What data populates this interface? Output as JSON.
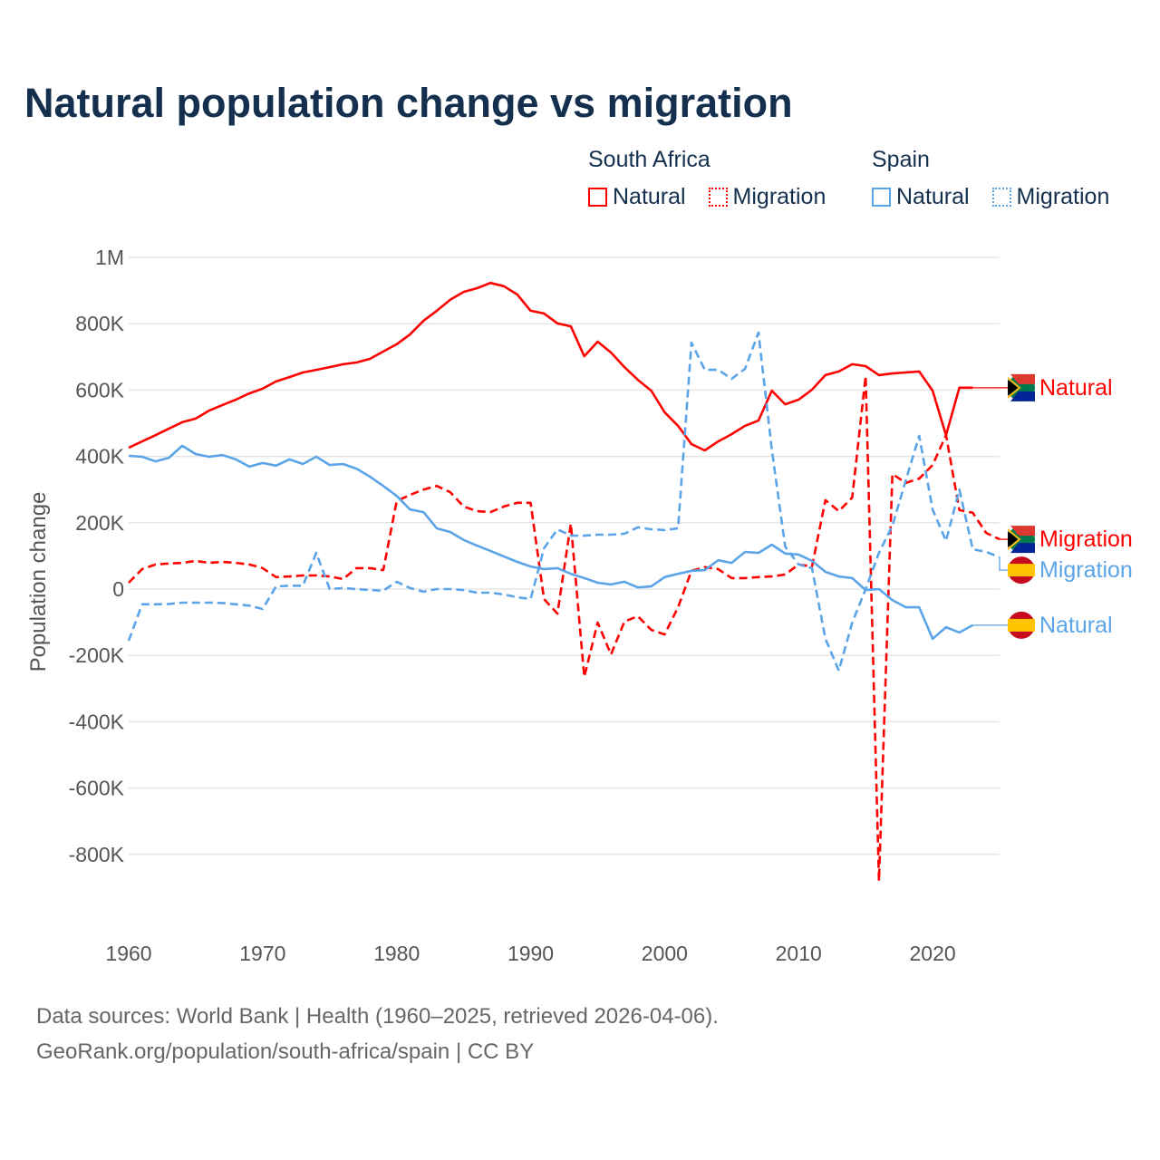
{
  "title": "Natural population change vs migration",
  "legend": {
    "groups": [
      {
        "name": "South Africa",
        "items": [
          {
            "label": "Natural",
            "style": "solid",
            "color": "#ff0000"
          },
          {
            "label": "Migration",
            "style": "dotted",
            "color": "#ff0000"
          }
        ]
      },
      {
        "name": "Spain",
        "items": [
          {
            "label": "Natural",
            "style": "solid",
            "color": "#5ba4e8"
          },
          {
            "label": "Migration",
            "style": "dotted",
            "color": "#5ba4e8"
          }
        ]
      }
    ]
  },
  "footer": {
    "line1": "Data sources: World Bank | Health (1960–2025, retrieved 2026-04-06).",
    "line2": "GeoRank.org/population/south-africa/spain | CC BY"
  },
  "chart_data": {
    "type": "line",
    "title": "Natural population change vs migration",
    "xlabel": "",
    "ylabel": "Population change",
    "xlim": [
      1960,
      2025
    ],
    "ylim": [
      -1000000,
      1000000
    ],
    "grid": true,
    "legend_position": "top-right",
    "x_ticks": [
      1960,
      1970,
      1980,
      1990,
      2000,
      2010,
      2020
    ],
    "y_ticks": [
      {
        "value": 1000000,
        "label": "1M"
      },
      {
        "value": 800000,
        "label": "800K"
      },
      {
        "value": 600000,
        "label": "600K"
      },
      {
        "value": 400000,
        "label": "400K"
      },
      {
        "value": 200000,
        "label": "200K"
      },
      {
        "value": 0,
        "label": "0"
      },
      {
        "value": -200000,
        "label": "-200K"
      },
      {
        "value": -400000,
        "label": "-400K"
      },
      {
        "value": -600000,
        "label": "-600K"
      },
      {
        "value": -800000,
        "label": "-800K"
      }
    ],
    "series": [
      {
        "name": "South Africa Natural",
        "end_label": "Natural",
        "country": "south-africa",
        "color": "#ff0000",
        "dash": "solid",
        "start_year": 1960,
        "values": [
          426000,
          445000,
          464000,
          484000,
          503000,
          514000,
          538000,
          555000,
          571000,
          590000,
          604000,
          626000,
          639000,
          653000,
          661000,
          669000,
          678000,
          683000,
          694000,
          716000,
          738000,
          768000,
          809000,
          839000,
          872000,
          896000,
          907000,
          923000,
          913000,
          888000,
          839000,
          831000,
          801000,
          792000,
          702000,
          746000,
          713000,
          669000,
          631000,
          598000,
          533000,
          492000,
          437000,
          418000,
          445000,
          467000,
          492000,
          508000,
          598000,
          557000,
          571000,
          601000,
          645000,
          656000,
          678000,
          672000,
          645000,
          650000,
          653000,
          656000,
          598000,
          464000,
          607000,
          607000
        ]
      },
      {
        "name": "South Africa Migration",
        "end_label": "Migration",
        "country": "south-africa",
        "color": "#ff0000",
        "dash": "dashed",
        "start_year": 1960,
        "values": [
          19000,
          60000,
          74000,
          77000,
          79000,
          85000,
          79000,
          82000,
          79000,
          74000,
          63000,
          36000,
          38000,
          41000,
          41000,
          38000,
          30000,
          63000,
          63000,
          57000,
          265000,
          284000,
          300000,
          311000,
          292000,
          249000,
          235000,
          232000,
          249000,
          260000,
          260000,
          -30000,
          -74000,
          197000,
          -265000,
          -101000,
          -197000,
          -98000,
          -82000,
          -123000,
          -137000,
          -55000,
          55000,
          66000,
          60000,
          33000,
          33000,
          36000,
          38000,
          44000,
          74000,
          68000,
          268000,
          235000,
          276000,
          642000,
          -880000,
          347000,
          320000,
          333000,
          374000,
          464000,
          238000,
          230000,
          169000,
          150000
        ]
      },
      {
        "name": "Spain Natural",
        "end_label": "Natural",
        "country": "spain",
        "color": "#5ba4e8",
        "dash": "solid",
        "start_year": 1960,
        "values": [
          402000,
          399000,
          385000,
          396000,
          432000,
          407000,
          399000,
          404000,
          391000,
          369000,
          380000,
          372000,
          391000,
          377000,
          399000,
          374000,
          377000,
          363000,
          339000,
          311000,
          281000,
          240000,
          232000,
          183000,
          172000,
          148000,
          131000,
          115000,
          98000,
          82000,
          68000,
          60000,
          63000,
          46000,
          33000,
          19000,
          14000,
          22000,
          5000,
          8000,
          36000,
          46000,
          55000,
          57000,
          87000,
          79000,
          112000,
          109000,
          134000,
          107000,
          104000,
          85000,
          52000,
          38000,
          33000,
          -3000,
          0,
          -33000,
          -55000,
          -55000,
          -150000,
          -115000,
          -131000,
          -109000
        ]
      },
      {
        "name": "Spain Migration",
        "end_label": "Migration",
        "country": "spain",
        "color": "#5ba4e8",
        "dash": "dashed",
        "start_year": 1960,
        "values": [
          -156000,
          -46000,
          -46000,
          -45000,
          -41000,
          -41000,
          -41000,
          -42000,
          -46000,
          -50000,
          -60000,
          8000,
          10000,
          10000,
          109000,
          0,
          3000,
          0,
          -3000,
          -5000,
          22000,
          3000,
          -8000,
          0,
          0,
          -3000,
          -11000,
          -11000,
          -16000,
          -25000,
          -30000,
          123000,
          180000,
          161000,
          161000,
          164000,
          164000,
          167000,
          186000,
          180000,
          178000,
          183000,
          743000,
          661000,
          661000,
          634000,
          664000,
          773000,
          420000,
          128000,
          74000,
          63000,
          -150000,
          -246000,
          -101000,
          0,
          109000,
          191000,
          328000,
          462000,
          240000,
          145000,
          300000,
          120000,
          112000,
          96000
        ]
      }
    ]
  }
}
